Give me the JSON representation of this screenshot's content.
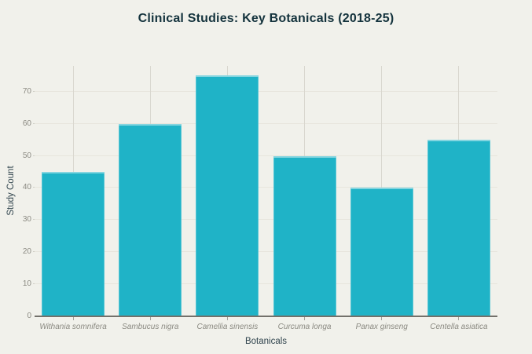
{
  "page": {
    "background": "#f1f1eb"
  },
  "chart_data": {
    "type": "bar",
    "title": "Clinical Studies: Key Botanicals (2018-25)",
    "xlabel": "Botanicals",
    "ylabel": "Study Count",
    "categories": [
      "Withania somnifera",
      "Sambucus nigra",
      "Camellia sinensis",
      "Curcuma longa",
      "Panax ginseng",
      "Centella asiatica"
    ],
    "values": [
      45,
      60,
      75,
      50,
      40,
      55
    ],
    "y_ticks": [
      0,
      10,
      20,
      30,
      40,
      50,
      60,
      70
    ],
    "ylim": [
      0,
      78
    ],
    "grid": true,
    "legend": "none",
    "bar_color": "#1fb3c7",
    "background_color": "#f1f1eb",
    "title_color": "#14333d",
    "axis_title_color": "#31454e",
    "tick_label_color": "#8b8a82",
    "h_gridline_color": "#e7e5dd",
    "v_gridline_color": "#d9d7cf",
    "axis_line_color": "#73716b"
  }
}
